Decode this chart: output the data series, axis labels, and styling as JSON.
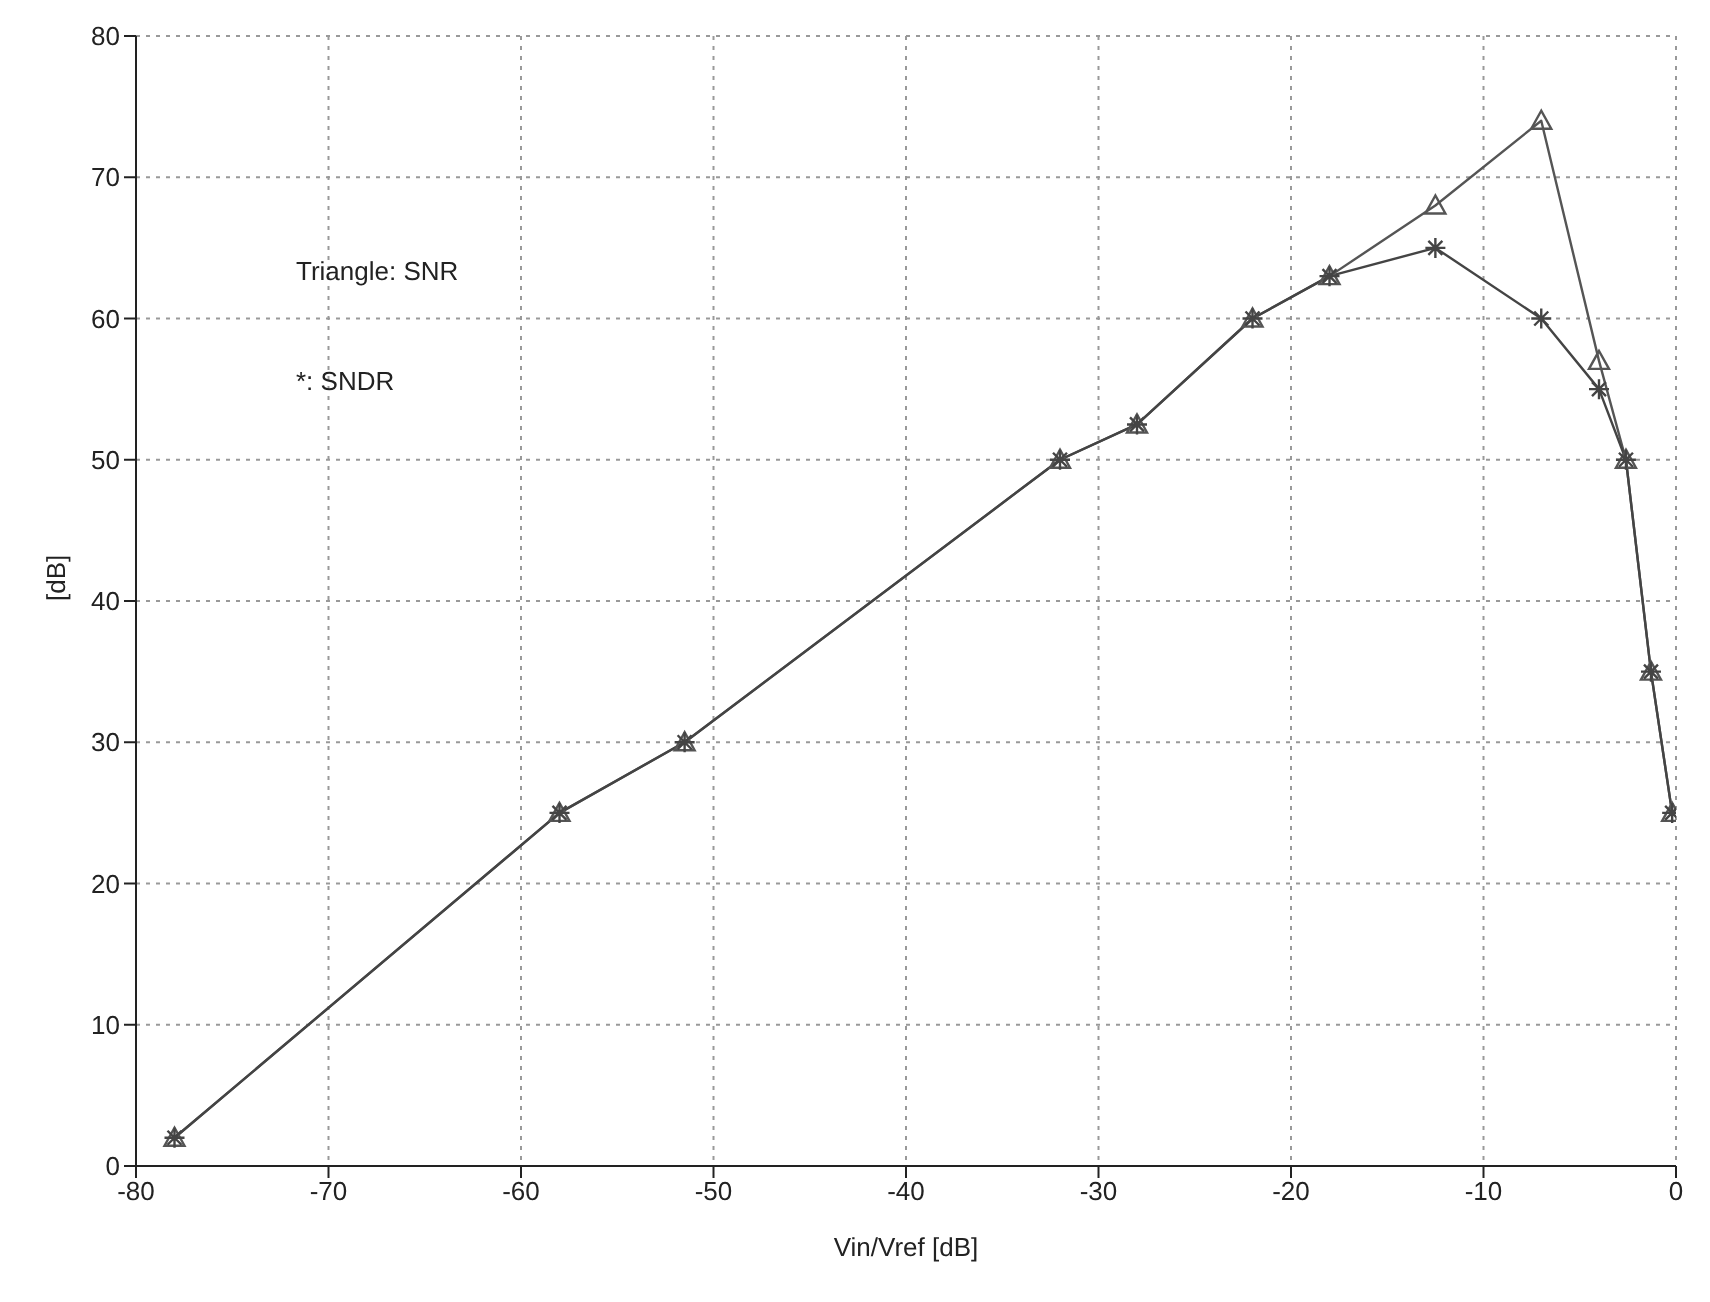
{
  "chart_data": {
    "type": "line",
    "xlabel": "Vin/Vref [dB]",
    "ylabel": "[dB]",
    "x": [
      -78,
      -58,
      -51.5,
      -32,
      -28,
      -22,
      -18,
      -12.5,
      -7,
      -4,
      -2.6,
      -1.3,
      -0.2
    ],
    "series": [
      {
        "color": "#555555",
        "marker": "triangle",
        "values": [
          2,
          25,
          30,
          50,
          52.5,
          60,
          63,
          68,
          74,
          57,
          50,
          35,
          25
        ]
      },
      {
        "color": "#444444",
        "marker": "cross",
        "values": [
          2,
          25,
          30,
          50,
          52.5,
          60,
          63,
          65,
          60,
          55,
          50,
          35,
          25
        ]
      }
    ],
    "annotations": [
      "Triangle: SNR",
      "*: SNDR"
    ],
    "xlim": [
      -80,
      0
    ],
    "xticks": [
      -80,
      -70,
      -60,
      -50,
      -40,
      -30,
      -20,
      -10,
      0
    ],
    "ylim": [
      0,
      80
    ],
    "yticks": [
      0,
      10,
      20,
      30,
      40,
      50,
      60,
      70,
      80
    ],
    "grid": true,
    "line_style": "solid"
  }
}
